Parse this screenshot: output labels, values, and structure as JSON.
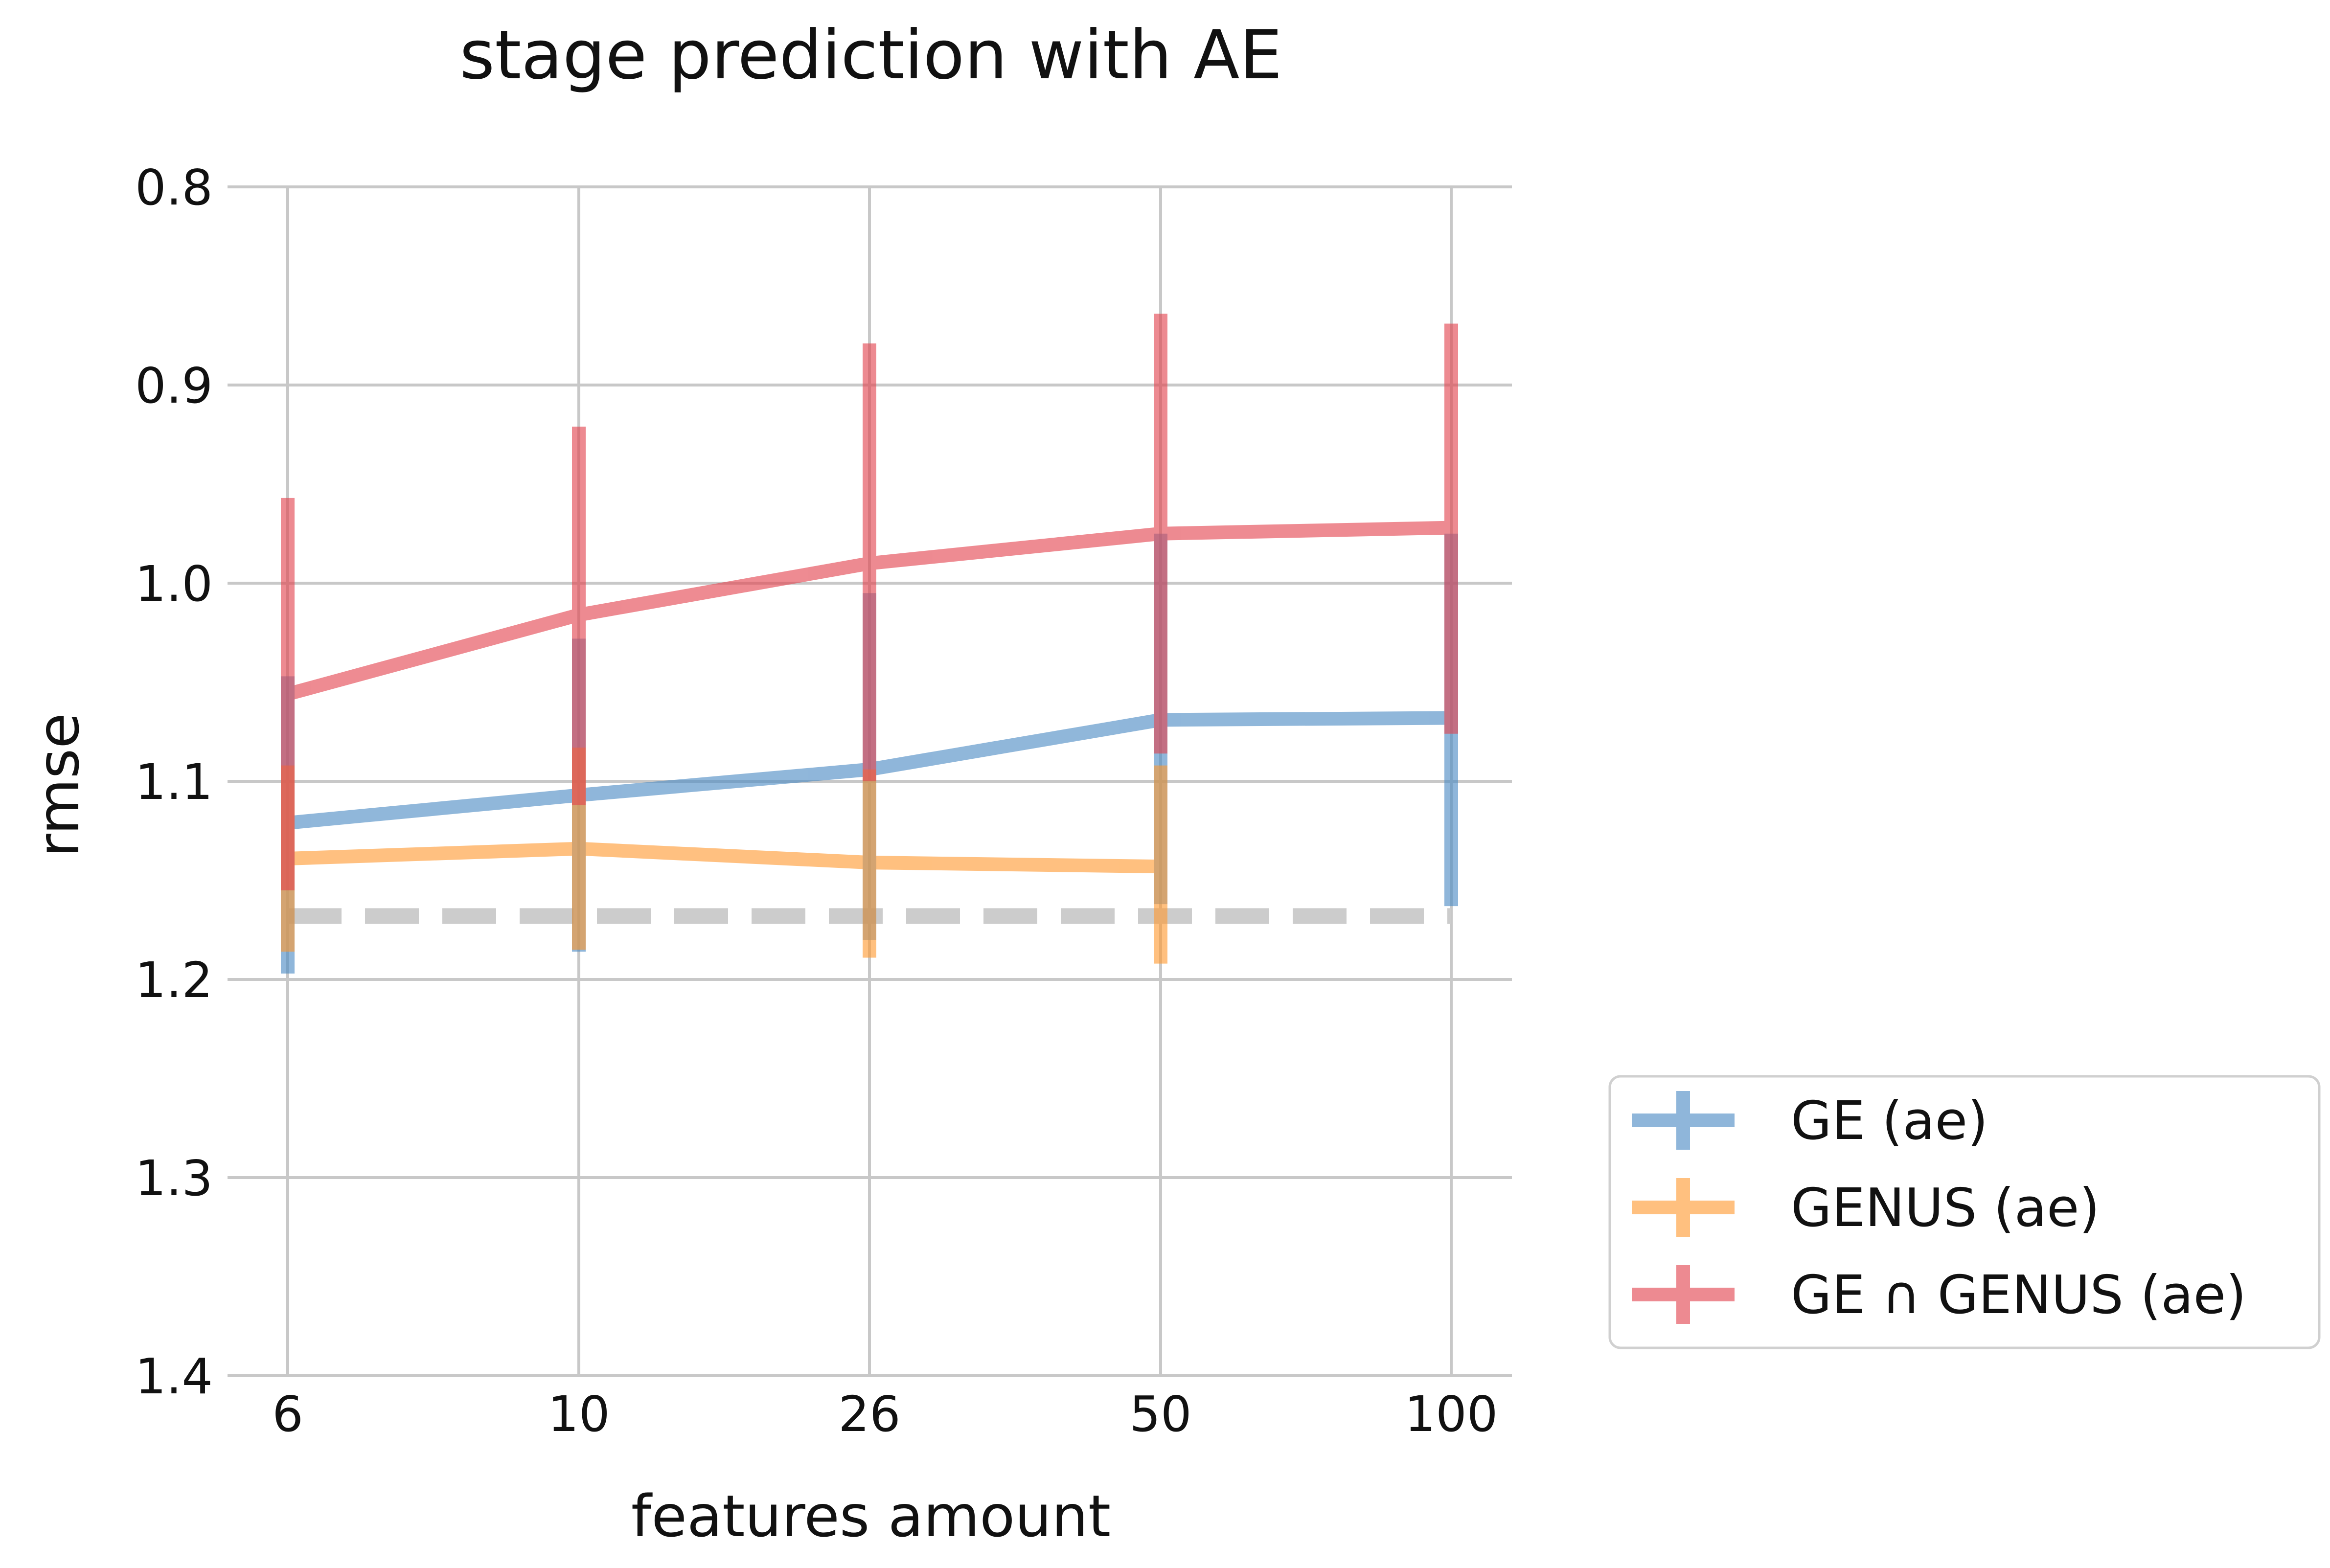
{
  "chart_data": {
    "type": "line",
    "title": "stage prediction with AE",
    "xlabel": "features amount",
    "ylabel": "rmse",
    "categories": [
      "6",
      "10",
      "26",
      "50",
      "100"
    ],
    "ylim": [
      1.4,
      0.8
    ],
    "y_inverted": true,
    "yticks": [
      "0.8",
      "0.9",
      "1.0",
      "1.1",
      "1.2",
      "1.3",
      "1.4"
    ],
    "grid": true,
    "legend_position": "lower-right outside",
    "baseline": {
      "value": 1.168,
      "style": "dashed",
      "color": "#cccccc"
    },
    "series": [
      {
        "name": "GE (ae)",
        "color": "#4c8bc4",
        "values": [
          1.121,
          1.107,
          1.094,
          1.069,
          1.068
        ],
        "err_low": [
          1.047,
          1.028,
          1.005,
          0.975,
          0.975
        ],
        "err_high": [
          1.197,
          1.186,
          1.18,
          1.162,
          1.163
        ]
      },
      {
        "name": "GENUS (ae)",
        "color": "#ff9a32",
        "values": [
          1.139,
          1.134,
          1.141,
          1.143,
          null
        ],
        "err_low": [
          1.092,
          1.083,
          1.094,
          1.092,
          null
        ],
        "err_high": [
          1.186,
          1.185,
          1.189,
          1.192,
          null
        ]
      },
      {
        "name": "GE ∩ GENUS (ae)",
        "color": "#e3444f",
        "values": [
          1.056,
          1.016,
          0.99,
          0.975,
          0.972
        ],
        "err_low": [
          0.957,
          0.921,
          0.879,
          0.864,
          0.869
        ],
        "err_high": [
          1.155,
          1.112,
          1.1,
          1.086,
          1.076
        ]
      }
    ]
  }
}
